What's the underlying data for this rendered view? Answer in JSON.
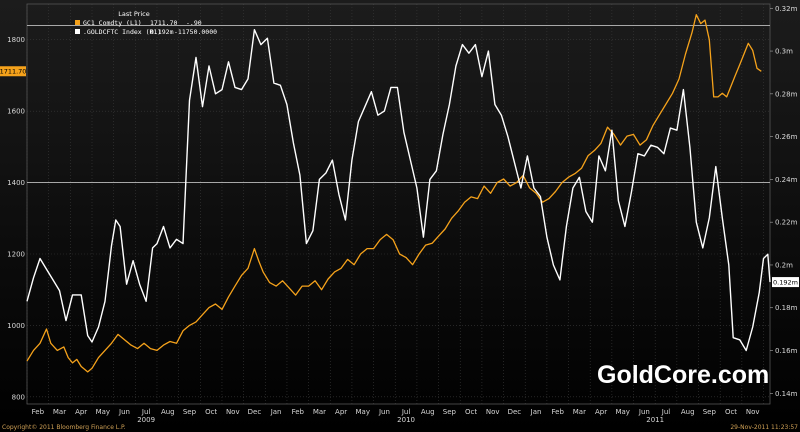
{
  "watermark": "GoldCore.com",
  "footer": {
    "copyright": "Copyright© 2011 Bloomberg Finance L.P.",
    "timestamp": "29-Nov-2011 11:23:57"
  },
  "colors": {
    "background": "#000000",
    "gold_series": "#f5a21b",
    "index_series": "#ffffff",
    "grid": "#3a3a3a",
    "axis_text": "#d8d8d8"
  },
  "chart_data": {
    "type": "line",
    "title": "",
    "legend": {
      "title": "Last Price",
      "placement": "top-left",
      "entries": [
        {
          "label": "GC1 Comdty (L1)",
          "value": "1711.70",
          "change": "-.90",
          "color": "#f5a21b"
        },
        {
          "label": ".GOLDCFTC Index (R1)",
          "value": "0.192m",
          "change": "-11750.0000",
          "color": "#ffffff"
        }
      ]
    },
    "x_labels": [
      {
        "label": "Feb",
        "t": 0.5
      },
      {
        "label": "Mar",
        "t": 1.5
      },
      {
        "label": "Apr",
        "t": 2.5
      },
      {
        "label": "May",
        "t": 3.5
      },
      {
        "label": "Jun",
        "t": 4.5
      },
      {
        "label": "Jul",
        "t": 5.5
      },
      {
        "label": "Aug",
        "t": 6.5
      },
      {
        "label": "Sep",
        "t": 7.5
      },
      {
        "label": "Oct",
        "t": 8.5
      },
      {
        "label": "Nov",
        "t": 9.5
      },
      {
        "label": "Dec",
        "t": 10.5
      },
      {
        "label": "Jan",
        "t": 11.5
      },
      {
        "label": "Feb",
        "t": 12.5
      },
      {
        "label": "Mar",
        "t": 13.5
      },
      {
        "label": "Apr",
        "t": 14.5
      },
      {
        "label": "May",
        "t": 15.5
      },
      {
        "label": "Jun",
        "t": 16.5
      },
      {
        "label": "Jul",
        "t": 17.5
      },
      {
        "label": "Aug",
        "t": 18.5
      },
      {
        "label": "Sep",
        "t": 19.5
      },
      {
        "label": "Oct",
        "t": 20.5
      },
      {
        "label": "Nov",
        "t": 21.5
      },
      {
        "label": "Dec",
        "t": 22.5
      },
      {
        "label": "Jan",
        "t": 23.5
      },
      {
        "label": "Feb",
        "t": 24.5
      },
      {
        "label": "Mar",
        "t": 25.5
      },
      {
        "label": "Apr",
        "t": 26.5
      },
      {
        "label": "May",
        "t": 27.5
      },
      {
        "label": "Jun",
        "t": 28.5
      },
      {
        "label": "Jul",
        "t": 29.5
      },
      {
        "label": "Aug",
        "t": 30.5
      },
      {
        "label": "Sep",
        "t": 31.5
      },
      {
        "label": "Oct",
        "t": 32.5
      },
      {
        "label": "Nov",
        "t": 33.5
      }
    ],
    "year_labels": [
      {
        "label": "2009",
        "t": 5.5
      },
      {
        "label": "2010",
        "t": 17.5
      },
      {
        "label": "2011",
        "t": 29.0
      }
    ],
    "x_range": [
      0,
      34.3
    ],
    "left_axis": {
      "ticks": [
        800,
        1000,
        1200,
        1400,
        1600,
        1800
      ],
      "range": [
        780,
        1900
      ]
    },
    "right_axis": {
      "tick_labels": [
        "0.14m",
        "0.16m",
        "0.18m",
        "0.2m",
        "0.22m",
        "0.24m",
        "0.26m",
        "0.28m",
        "0.3m",
        "0.32m"
      ],
      "tick_values": [
        0.14,
        0.16,
        0.18,
        0.2,
        0.22,
        0.24,
        0.26,
        0.28,
        0.3,
        0.32
      ],
      "range": [
        0.135,
        0.322
      ]
    },
    "reference_lines": [
      {
        "axis": "left",
        "value": 1400
      },
      {
        "axis": "left",
        "value": 1840
      }
    ],
    "last_tags": [
      {
        "axis": "left",
        "label": "1711.70",
        "value": 1711.7,
        "color": "#f5a21b"
      },
      {
        "axis": "right",
        "label": "0.192m",
        "value": 0.192,
        "color": "#ffffff"
      }
    ],
    "series": [
      {
        "name": "GC1 Comdty (L1)",
        "axis": "left",
        "color": "#f5a21b",
        "points": [
          [
            0,
            900
          ],
          [
            0.3,
            930
          ],
          [
            0.6,
            950
          ],
          [
            0.9,
            990
          ],
          [
            1.1,
            950
          ],
          [
            1.4,
            930
          ],
          [
            1.7,
            940
          ],
          [
            1.9,
            910
          ],
          [
            2.1,
            895
          ],
          [
            2.3,
            905
          ],
          [
            2.5,
            885
          ],
          [
            2.8,
            870
          ],
          [
            3.0,
            880
          ],
          [
            3.3,
            910
          ],
          [
            3.6,
            930
          ],
          [
            3.9,
            950
          ],
          [
            4.2,
            975
          ],
          [
            4.5,
            960
          ],
          [
            4.8,
            945
          ],
          [
            5.1,
            935
          ],
          [
            5.4,
            950
          ],
          [
            5.7,
            935
          ],
          [
            6.0,
            930
          ],
          [
            6.3,
            945
          ],
          [
            6.6,
            955
          ],
          [
            6.9,
            950
          ],
          [
            7.2,
            985
          ],
          [
            7.5,
            1000
          ],
          [
            7.8,
            1010
          ],
          [
            8.1,
            1030
          ],
          [
            8.4,
            1050
          ],
          [
            8.7,
            1060
          ],
          [
            9.0,
            1045
          ],
          [
            9.3,
            1080
          ],
          [
            9.6,
            1110
          ],
          [
            9.9,
            1140
          ],
          [
            10.2,
            1160
          ],
          [
            10.5,
            1215
          ],
          [
            10.7,
            1180
          ],
          [
            10.9,
            1150
          ],
          [
            11.2,
            1120
          ],
          [
            11.5,
            1110
          ],
          [
            11.8,
            1125
          ],
          [
            12.1,
            1105
          ],
          [
            12.4,
            1085
          ],
          [
            12.7,
            1110
          ],
          [
            13.0,
            1110
          ],
          [
            13.3,
            1125
          ],
          [
            13.6,
            1100
          ],
          [
            13.9,
            1130
          ],
          [
            14.2,
            1150
          ],
          [
            14.5,
            1160
          ],
          [
            14.8,
            1185
          ],
          [
            15.1,
            1170
          ],
          [
            15.4,
            1200
          ],
          [
            15.7,
            1215
          ],
          [
            16.0,
            1215
          ],
          [
            16.3,
            1240
          ],
          [
            16.6,
            1255
          ],
          [
            16.9,
            1240
          ],
          [
            17.2,
            1200
          ],
          [
            17.5,
            1190
          ],
          [
            17.8,
            1170
          ],
          [
            18.1,
            1200
          ],
          [
            18.4,
            1225
          ],
          [
            18.7,
            1230
          ],
          [
            19.0,
            1250
          ],
          [
            19.3,
            1270
          ],
          [
            19.6,
            1300
          ],
          [
            19.9,
            1320
          ],
          [
            20.2,
            1345
          ],
          [
            20.5,
            1360
          ],
          [
            20.8,
            1355
          ],
          [
            21.1,
            1390
          ],
          [
            21.4,
            1370
          ],
          [
            21.7,
            1400
          ],
          [
            22.0,
            1410
          ],
          [
            22.3,
            1390
          ],
          [
            22.6,
            1400
          ],
          [
            22.9,
            1420
          ],
          [
            23.2,
            1385
          ],
          [
            23.5,
            1370
          ],
          [
            23.8,
            1345
          ],
          [
            24.1,
            1355
          ],
          [
            24.4,
            1375
          ],
          [
            24.7,
            1400
          ],
          [
            25.0,
            1415
          ],
          [
            25.3,
            1425
          ],
          [
            25.6,
            1440
          ],
          [
            25.9,
            1475
          ],
          [
            26.2,
            1490
          ],
          [
            26.5,
            1510
          ],
          [
            26.8,
            1555
          ],
          [
            27.1,
            1535
          ],
          [
            27.4,
            1505
          ],
          [
            27.7,
            1530
          ],
          [
            28.0,
            1535
          ],
          [
            28.3,
            1505
          ],
          [
            28.6,
            1520
          ],
          [
            28.9,
            1560
          ],
          [
            29.2,
            1590
          ],
          [
            29.5,
            1620
          ],
          [
            29.8,
            1650
          ],
          [
            30.1,
            1690
          ],
          [
            30.4,
            1760
          ],
          [
            30.7,
            1820
          ],
          [
            30.9,
            1870
          ],
          [
            31.1,
            1845
          ],
          [
            31.3,
            1855
          ],
          [
            31.5,
            1800
          ],
          [
            31.7,
            1640
          ],
          [
            31.9,
            1640
          ],
          [
            32.1,
            1650
          ],
          [
            32.3,
            1640
          ],
          [
            32.5,
            1670
          ],
          [
            32.7,
            1700
          ],
          [
            32.9,
            1730
          ],
          [
            33.1,
            1760
          ],
          [
            33.3,
            1790
          ],
          [
            33.5,
            1770
          ],
          [
            33.7,
            1720
          ],
          [
            33.9,
            1711.7
          ]
        ]
      },
      {
        "name": ".GOLDCFTC Index (R1)",
        "axis": "right",
        "color": "#ffffff",
        "points": [
          [
            0,
            0.183
          ],
          [
            0.3,
            0.194
          ],
          [
            0.6,
            0.203
          ],
          [
            0.9,
            0.198
          ],
          [
            1.2,
            0.193
          ],
          [
            1.5,
            0.188
          ],
          [
            1.8,
            0.174
          ],
          [
            2.1,
            0.186
          ],
          [
            2.5,
            0.186
          ],
          [
            2.8,
            0.167
          ],
          [
            3.0,
            0.164
          ],
          [
            3.3,
            0.171
          ],
          [
            3.6,
            0.183
          ],
          [
            3.9,
            0.209
          ],
          [
            4.1,
            0.221
          ],
          [
            4.3,
            0.218
          ],
          [
            4.6,
            0.191
          ],
          [
            4.9,
            0.202
          ],
          [
            5.2,
            0.191
          ],
          [
            5.5,
            0.183
          ],
          [
            5.8,
            0.208
          ],
          [
            6.0,
            0.21
          ],
          [
            6.3,
            0.218
          ],
          [
            6.6,
            0.208
          ],
          [
            6.9,
            0.212
          ],
          [
            7.2,
            0.21
          ],
          [
            7.5,
            0.277
          ],
          [
            7.8,
            0.297
          ],
          [
            8.1,
            0.274
          ],
          [
            8.4,
            0.293
          ],
          [
            8.7,
            0.28
          ],
          [
            9.0,
            0.282
          ],
          [
            9.3,
            0.295
          ],
          [
            9.6,
            0.283
          ],
          [
            9.9,
            0.282
          ],
          [
            10.2,
            0.287
          ],
          [
            10.5,
            0.31
          ],
          [
            10.8,
            0.303
          ],
          [
            11.1,
            0.306
          ],
          [
            11.4,
            0.285
          ],
          [
            11.7,
            0.284
          ],
          [
            12.0,
            0.275
          ],
          [
            12.3,
            0.257
          ],
          [
            12.6,
            0.242
          ],
          [
            12.9,
            0.21
          ],
          [
            13.2,
            0.216
          ],
          [
            13.5,
            0.24
          ],
          [
            13.8,
            0.243
          ],
          [
            14.1,
            0.249
          ],
          [
            14.4,
            0.233
          ],
          [
            14.7,
            0.221
          ],
          [
            15.0,
            0.249
          ],
          [
            15.3,
            0.267
          ],
          [
            15.6,
            0.274
          ],
          [
            15.9,
            0.281
          ],
          [
            16.2,
            0.27
          ],
          [
            16.5,
            0.272
          ],
          [
            16.8,
            0.283
          ],
          [
            17.1,
            0.283
          ],
          [
            17.4,
            0.262
          ],
          [
            17.7,
            0.249
          ],
          [
            18.0,
            0.236
          ],
          [
            18.3,
            0.213
          ],
          [
            18.6,
            0.24
          ],
          [
            18.9,
            0.244
          ],
          [
            19.2,
            0.261
          ],
          [
            19.5,
            0.275
          ],
          [
            19.8,
            0.293
          ],
          [
            20.1,
            0.303
          ],
          [
            20.4,
            0.299
          ],
          [
            20.7,
            0.303
          ],
          [
            21.0,
            0.288
          ],
          [
            21.3,
            0.3
          ],
          [
            21.6,
            0.275
          ],
          [
            21.9,
            0.27
          ],
          [
            22.2,
            0.26
          ],
          [
            22.5,
            0.248
          ],
          [
            22.8,
            0.236
          ],
          [
            23.1,
            0.251
          ],
          [
            23.4,
            0.236
          ],
          [
            23.7,
            0.232
          ],
          [
            24.0,
            0.213
          ],
          [
            24.3,
            0.2
          ],
          [
            24.6,
            0.193
          ],
          [
            24.9,
            0.218
          ],
          [
            25.2,
            0.236
          ],
          [
            25.5,
            0.241
          ],
          [
            25.8,
            0.225
          ],
          [
            26.1,
            0.22
          ],
          [
            26.4,
            0.251
          ],
          [
            26.7,
            0.244
          ],
          [
            27.0,
            0.263
          ],
          [
            27.3,
            0.23
          ],
          [
            27.6,
            0.218
          ],
          [
            27.9,
            0.234
          ],
          [
            28.2,
            0.252
          ],
          [
            28.5,
            0.251
          ],
          [
            28.8,
            0.256
          ],
          [
            29.1,
            0.255
          ],
          [
            29.4,
            0.252
          ],
          [
            29.7,
            0.264
          ],
          [
            30.0,
            0.263
          ],
          [
            30.3,
            0.282
          ],
          [
            30.6,
            0.255
          ],
          [
            30.9,
            0.22
          ],
          [
            31.2,
            0.208
          ],
          [
            31.5,
            0.222
          ],
          [
            31.8,
            0.246
          ],
          [
            32.1,
            0.222
          ],
          [
            32.4,
            0.2
          ],
          [
            32.6,
            0.166
          ],
          [
            32.9,
            0.165
          ],
          [
            33.2,
            0.16
          ],
          [
            33.5,
            0.171
          ],
          [
            33.8,
            0.187
          ],
          [
            34.0,
            0.203
          ],
          [
            34.2,
            0.205
          ],
          [
            34.3,
            0.192
          ]
        ]
      }
    ]
  }
}
